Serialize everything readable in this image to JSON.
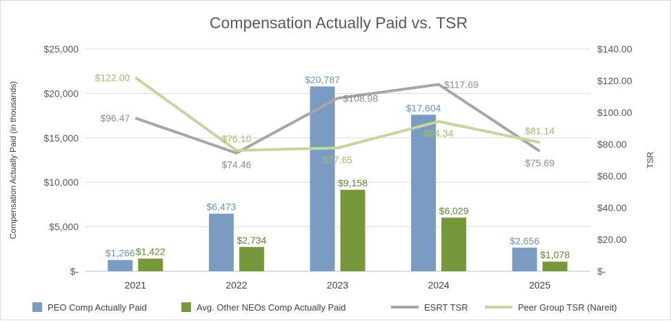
{
  "chart_data": {
    "type": "bar",
    "title": "Compensation Actually Paid vs. TSR",
    "categories": [
      "2021",
      "2022",
      "2023",
      "2024",
      "2025"
    ],
    "ylabel": "Compensation Actually Paid (in thousands)",
    "y2label": "TSR",
    "ylim": [
      0,
      25000
    ],
    "y2lim": [
      0,
      140
    ],
    "y_ticks": [
      0,
      5000,
      10000,
      15000,
      20000,
      25000
    ],
    "y_tick_labels": [
      "$-",
      "$5,000",
      "$10,000",
      "$15,000",
      "$20,000",
      "$25,000"
    ],
    "y2_ticks": [
      0,
      20,
      40,
      60,
      80,
      100,
      120,
      140
    ],
    "y2_tick_labels": [
      "$-",
      "$20.00",
      "$40.00",
      "$60.00",
      "$80.00",
      "$100.00",
      "$120.00",
      "$140.00"
    ],
    "grid": true,
    "legend_position": "bottom",
    "bar_series": [
      {
        "name": "PEO Comp Actually Paid",
        "color": "#7b9cc2",
        "label_color": "#6d91bf",
        "values": [
          1266,
          6473,
          20787,
          17604,
          2656
        ],
        "labels": [
          "$1,266",
          "$6,473",
          "$20,787",
          "$17,604",
          "$2,656"
        ]
      },
      {
        "name": "Avg. Other NEOs Comp Actually Paid",
        "color": "#76983a",
        "label_color": "#5c8a2a",
        "values": [
          1422,
          2734,
          9158,
          6029,
          1078
        ],
        "labels": [
          "$1,422",
          "$2,734",
          "$9,158",
          "$6,029",
          "$1,078"
        ]
      }
    ],
    "line_series": [
      {
        "name": "ESRT TSR",
        "color": "#a6a6a6",
        "label_color": "#8c8c8c",
        "axis": "secondary",
        "values": [
          96.47,
          74.46,
          108.98,
          117.69,
          75.69
        ],
        "labels": [
          "$96.47",
          "$74.46",
          "$108.98",
          "$117.69",
          "$75.69"
        ]
      },
      {
        "name": "Peer Group TSR (Nareit)",
        "color": "#c3d69b",
        "label_color": "#a3bd64",
        "axis": "secondary",
        "values": [
          122.0,
          76.1,
          77.65,
          94.34,
          81.14
        ],
        "labels": [
          "$122.00",
          "$76.10",
          "$77.65",
          "$94.34",
          "$81.14"
        ]
      }
    ]
  }
}
